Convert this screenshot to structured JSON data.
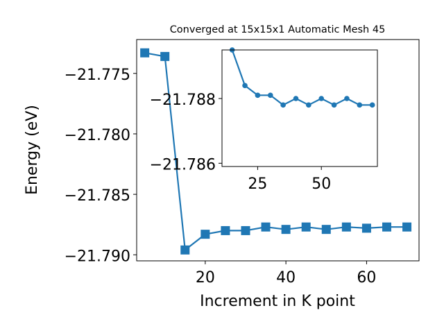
{
  "chart_data": [
    {
      "type": "line",
      "title": "Converged at 15x15x1 Automatic Mesh 45",
      "xlabel": "Increment in K point",
      "ylabel": "Energy (eV)",
      "xlim": [
        3,
        73
      ],
      "ylim": [
        -21.7905,
        -21.7722
      ],
      "xticks": [
        20,
        40,
        60
      ],
      "yticks": [
        -21.775,
        -21.78,
        -21.785,
        -21.79
      ],
      "ytick_labels": [
        "−21.775",
        "−21.780",
        "−21.785",
        "−21.790"
      ],
      "grid": false,
      "marker": "square",
      "color": "#1f77b4",
      "x": [
        5,
        10,
        15,
        20,
        25,
        30,
        35,
        40,
        45,
        50,
        55,
        60,
        65,
        70
      ],
      "y": [
        -21.7733,
        -21.7736,
        -21.7896,
        -21.7883,
        -21.788,
        -21.788,
        -21.7877,
        -21.7879,
        -21.7877,
        -21.7879,
        -21.7877,
        -21.7878,
        -21.7877,
        -21.7877
      ]
    },
    {
      "type": "line",
      "role": "inset",
      "xlim": [
        11,
        72
      ],
      "ylim": [
        -21.7859,
        -21.7895
      ],
      "xticks": [
        25,
        50
      ],
      "yticks": [
        -21.788,
        -21.786
      ],
      "ytick_labels": [
        "−21.788",
        "−21.786"
      ],
      "grid": false,
      "marker": "circle",
      "color": "#1f77b4",
      "x": [
        15,
        20,
        25,
        30,
        35,
        40,
        45,
        50,
        55,
        60,
        65,
        70
      ],
      "y": [
        -21.7895,
        -21.7884,
        -21.7881,
        -21.7881,
        -21.7878,
        -21.788,
        -21.7878,
        -21.788,
        -21.7878,
        -21.788,
        -21.7878,
        -21.7878
      ]
    }
  ]
}
